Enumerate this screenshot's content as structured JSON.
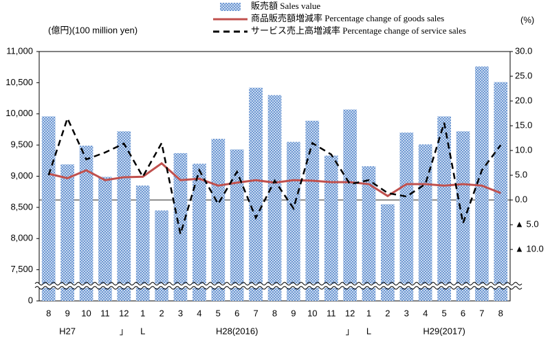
{
  "chart_data": {
    "type": "bar_line_dual",
    "y_unit_label": "(億円)(100 million yen)",
    "y2_unit_label": "(%)",
    "categories": [
      "8",
      "9",
      "10",
      "11",
      "12",
      "1",
      "2",
      "3",
      "4",
      "5",
      "6",
      "7",
      "8",
      "9",
      "10",
      "11",
      "12",
      "1",
      "2",
      "3",
      "4",
      "5",
      "6",
      "7",
      "8"
    ],
    "x_group_labels": [
      null,
      "H27",
      null,
      null,
      "」",
      "L",
      null,
      null,
      null,
      null,
      "H28(2016)",
      null,
      null,
      null,
      null,
      null,
      "」",
      "L",
      null,
      null,
      null,
      "H29(2017)",
      null,
      null,
      null
    ],
    "series": [
      {
        "name": "販売額 Sales value",
        "type": "bar",
        "color": "#4f81c8",
        "values": [
          9960,
          9190,
          9490,
          8990,
          9720,
          8850,
          8450,
          9370,
          9200,
          9600,
          9430,
          10420,
          10300,
          9550,
          9890,
          9330,
          10070,
          9160,
          8550,
          9700,
          9510,
          9960,
          9720,
          10760,
          10510
        ]
      },
      {
        "name": "商品販売額増減率 Percentage change of goods sales",
        "type": "line",
        "axis": "y2",
        "color": "#c0504d",
        "dash": false,
        "values": [
          5.3,
          4.4,
          6.0,
          4.0,
          4.6,
          4.7,
          7.4,
          4.0,
          4.3,
          2.9,
          3.5,
          4.0,
          3.5,
          4.0,
          3.9,
          3.6,
          3.6,
          3.2,
          0.8,
          3.2,
          3.2,
          2.9,
          3.2,
          2.9,
          1.4
        ]
      },
      {
        "name": "サービス売上高増減率 Percentage change of service sales",
        "type": "line",
        "axis": "y2",
        "color": "#000000",
        "dash": true,
        "values": [
          5.0,
          16.5,
          8.2,
          9.6,
          11.4,
          4.7,
          11.5,
          -6.9,
          6.0,
          -0.8,
          5.7,
          -3.6,
          3.9,
          -1.7,
          11.5,
          9.2,
          3.2,
          4.0,
          1.4,
          0.7,
          3.2,
          15.6,
          -4.7,
          6.0,
          11.1
        ]
      }
    ],
    "ylim": [
      0,
      11000
    ],
    "y_break": [
      0,
      7000
    ],
    "yticks": [
      0,
      {
        "value": 7500,
        "label": "7,500"
      },
      {
        "value": 8000,
        "label": "8,000"
      },
      {
        "value": 8500,
        "label": "8,500"
      },
      {
        "value": 9000,
        "label": "9,000"
      },
      {
        "value": 9500,
        "label": "9,500"
      },
      {
        "value": 10000,
        "label": "10,000"
      },
      {
        "value": 10500,
        "label": "10,500"
      },
      {
        "value": 11000,
        "label": "11,000"
      }
    ],
    "y2lim": [
      -20.4,
      30
    ],
    "y2ticks": [
      {
        "value": 30,
        "label": "30.0"
      },
      {
        "value": 25,
        "label": "25.0"
      },
      {
        "value": 20,
        "label": "20.0"
      },
      {
        "value": 15,
        "label": "15.0"
      },
      {
        "value": 10,
        "label": "10.0"
      },
      {
        "value": 5,
        "label": "5.0"
      },
      {
        "value": 0,
        "label": "0.0"
      },
      {
        "value": -5,
        "label": "▲ 5.0"
      },
      {
        "value": -10,
        "label": "▲ 10.0"
      }
    ],
    "legend": "top"
  }
}
